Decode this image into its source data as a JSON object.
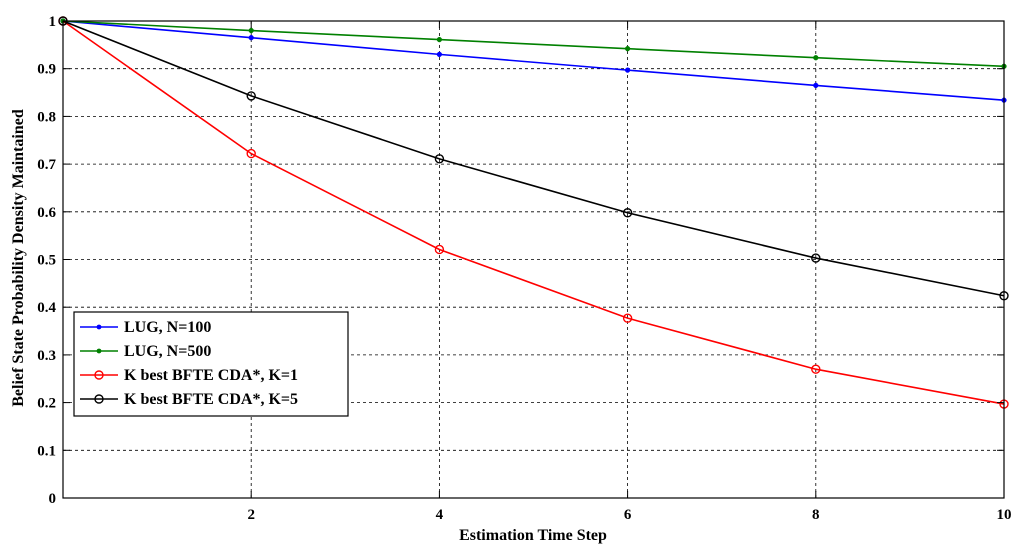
{
  "chart_data": {
    "type": "line",
    "title": "",
    "xlabel": "Estimation Time Step",
    "ylabel": "Belief State Probability Density Maintained",
    "xlim": [
      0,
      10
    ],
    "ylim": [
      0,
      1
    ],
    "xticks": [
      2,
      4,
      6,
      8,
      10
    ],
    "xtick_labels": [
      "2",
      "4",
      "6",
      "8",
      "10"
    ],
    "yticks": [
      0,
      0.1,
      0.2,
      0.3,
      0.4,
      0.5,
      0.6,
      0.7,
      0.8,
      0.9,
      1
    ],
    "ytick_labels": [
      "0",
      "0.1",
      "0.2",
      "0.3",
      "0.4",
      "0.5",
      "0.6",
      "0.7",
      "0.8",
      "0.9",
      "1"
    ],
    "grid": true,
    "legend_position": "bottom-left",
    "series": [
      {
        "name": "LUG, N=100",
        "color": "#0000ff",
        "marker": "dot",
        "x": [
          0,
          2,
          4,
          6,
          8,
          10
        ],
        "values": [
          1.0,
          0.965,
          0.93,
          0.897,
          0.865,
          0.834
        ]
      },
      {
        "name": "LUG, N=500",
        "color": "#008000",
        "marker": "dot",
        "x": [
          0,
          2,
          4,
          6,
          8,
          10
        ],
        "values": [
          1.0,
          0.98,
          0.961,
          0.942,
          0.923,
          0.905
        ]
      },
      {
        "name": "K best BFTE CDA*, K=1",
        "color": "#ff0000",
        "marker": "circle",
        "x": [
          0,
          2,
          4,
          6,
          8,
          10
        ],
        "values": [
          1.0,
          0.722,
          0.521,
          0.377,
          0.27,
          0.197
        ]
      },
      {
        "name": "K best BFTE CDA*, K=5",
        "color": "#000000",
        "marker": "circle",
        "x": [
          0,
          2,
          4,
          6,
          8,
          10
        ],
        "values": [
          1.0,
          0.843,
          0.711,
          0.598,
          0.503,
          0.424
        ]
      }
    ]
  }
}
